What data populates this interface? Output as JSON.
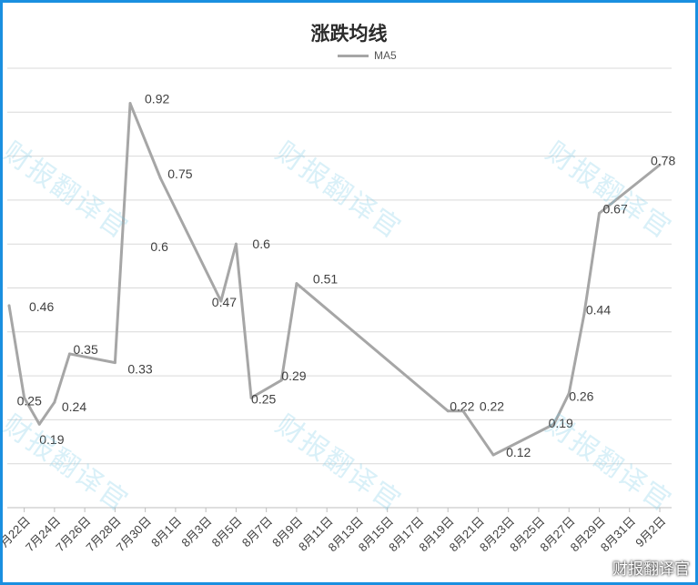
{
  "chart_data": {
    "type": "line",
    "title": "涨跌均线",
    "xlabel": "",
    "ylabel": "",
    "ylim": [
      0,
      1
    ],
    "grid": true,
    "legend": "top-center",
    "series": [
      {
        "name": "MA5",
        "color": "#a6a6a6",
        "points": [
          {
            "x": "7月21日",
            "y": 0.46,
            "label": "0.46"
          },
          {
            "x": "7月22日",
            "y": 0.25,
            "label": "0.25"
          },
          {
            "x": "7月23日",
            "y": 0.19,
            "label": "0.19"
          },
          {
            "x": "7月24日",
            "y": 0.24,
            "label": "0.24"
          },
          {
            "x": "7月25日",
            "y": 0.35,
            "label": "0.35"
          },
          {
            "x": "7月28日",
            "y": 0.33,
            "label": "0.33"
          },
          {
            "x": "7月29日",
            "y": 0.92,
            "label": "0.92"
          },
          {
            "x": "7月31日",
            "y": 0.75,
            "label": "0.75"
          },
          {
            "x": "8月4日",
            "y": 0.47,
            "label": "0.47"
          },
          {
            "x": "8月5日",
            "y": 0.6,
            "label": "0.6"
          },
          {
            "x": "8月6日",
            "y": 0.25,
            "label": "0.25"
          },
          {
            "x": "8月8日",
            "y": 0.29,
            "label": "0.29"
          },
          {
            "x": "8月9日",
            "y": 0.51,
            "label": "0.51"
          },
          {
            "x": "8月19日",
            "y": 0.22,
            "label": "0.22"
          },
          {
            "x": "8月20日",
            "y": 0.22,
            "label": "0.22"
          },
          {
            "x": "8月22日",
            "y": 0.12,
            "label": "0.12"
          },
          {
            "x": "8月26日",
            "y": 0.19,
            "label": "0.19"
          },
          {
            "x": "8月27日",
            "y": 0.26,
            "label": "0.26"
          },
          {
            "x": "8月28日",
            "y": 0.44,
            "label": "0.44"
          },
          {
            "x": "8月29日",
            "y": 0.67,
            "label": "0.67"
          },
          {
            "x": "9月2日",
            "y": 0.78,
            "label": "0.78"
          }
        ]
      }
    ],
    "extra_labels": [
      "0.6"
    ],
    "x_tick_labels": [
      "7月22日",
      "7月24日",
      "7月26日",
      "7月28日",
      "7月30日",
      "8月1日",
      "8月3日",
      "8月5日",
      "8月7日",
      "8月9日",
      "8月11日",
      "8月13日",
      "8月15日",
      "8月17日",
      "8月19日",
      "8月21日",
      "8月23日",
      "8月25日",
      "8月27日",
      "8月29日",
      "8月31日",
      "9月2日"
    ]
  },
  "watermark_text": "财报翻译官",
  "corner_watermark": "财报翻译官"
}
